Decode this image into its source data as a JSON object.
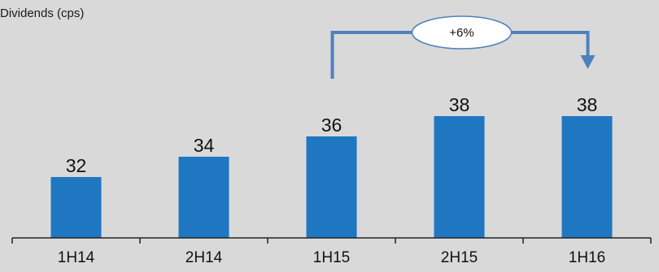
{
  "chart_data": {
    "type": "bar",
    "ylabel": "Dividends (cps)",
    "categories": [
      "1H14",
      "2H14",
      "1H15",
      "2H15",
      "1H16"
    ],
    "values": [
      32,
      34,
      36,
      38,
      38
    ],
    "ylim": [
      26,
      40
    ],
    "grid": false,
    "bar_color": "#1f77c2",
    "annotation": {
      "text": "+6%",
      "from": "1H15",
      "to": "1H16",
      "color": "#4f81bd"
    }
  }
}
